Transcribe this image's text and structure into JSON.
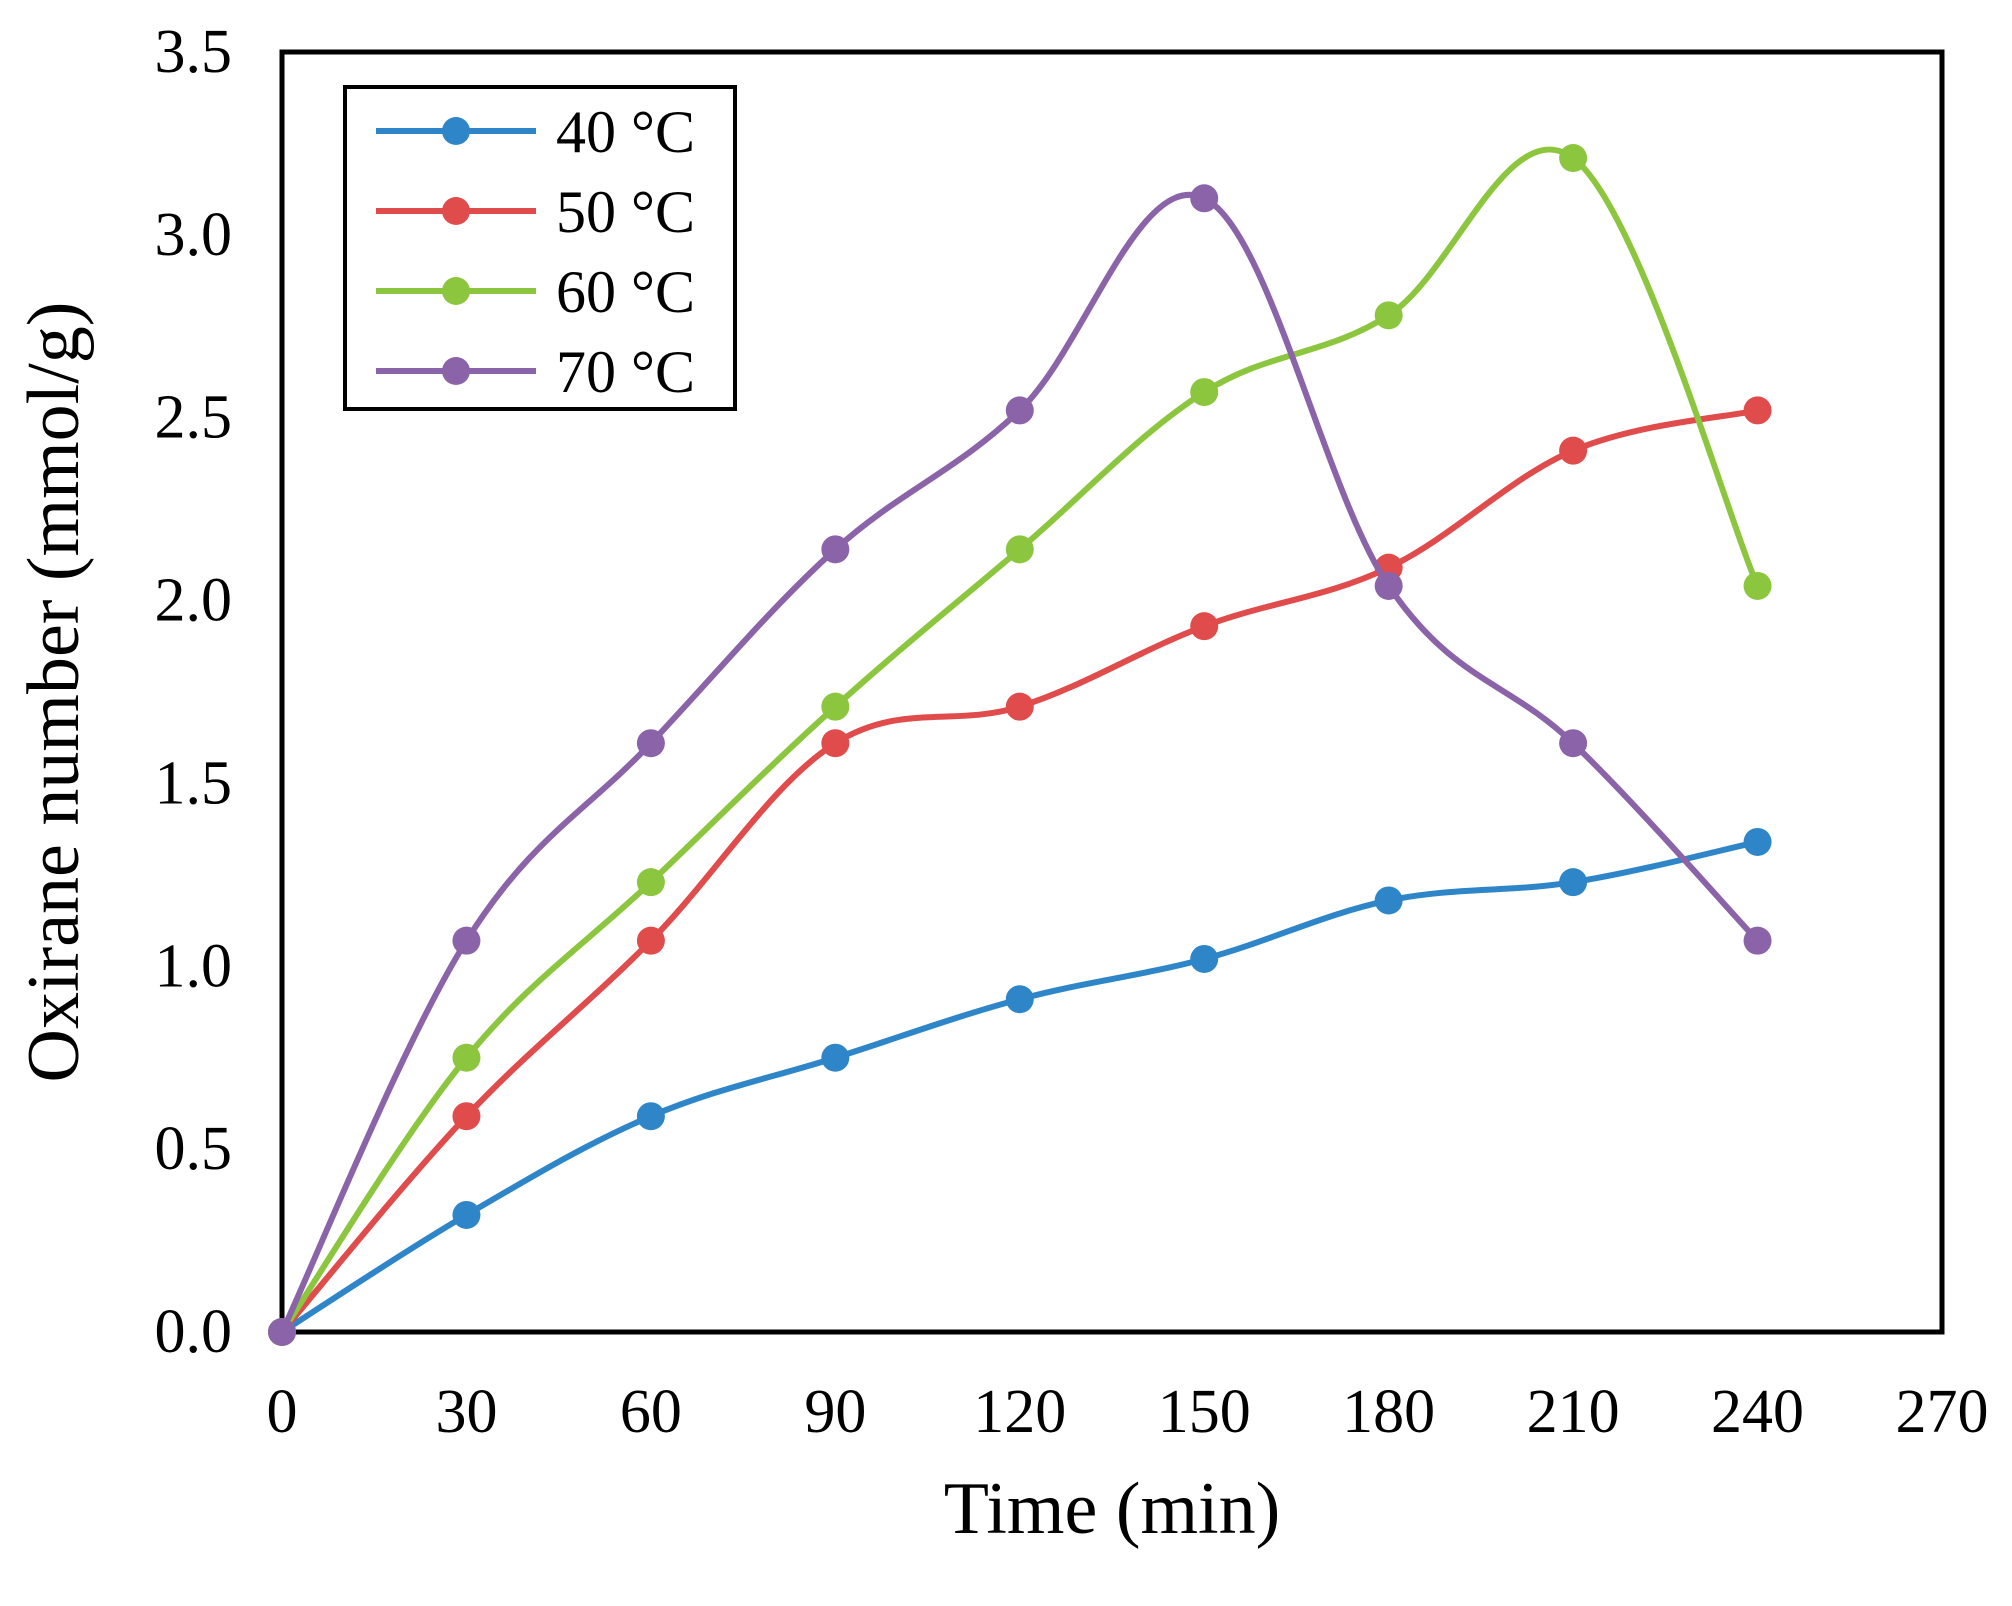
{
  "chart_data": {
    "type": "line",
    "title": "",
    "xlabel": "Time (min)",
    "ylabel": "Oxirane number (mmol/g)",
    "xlim": [
      0,
      270
    ],
    "ylim": [
      0,
      3.5
    ],
    "x_ticks": [
      "0",
      "30",
      "60",
      "90",
      "120",
      "150",
      "180",
      "210",
      "240",
      "270"
    ],
    "y_ticks": [
      "0.0",
      "0.5",
      "1.0",
      "1.5",
      "2.0",
      "2.5",
      "3.0",
      "3.5"
    ],
    "grid": false,
    "legend_position": "top-left",
    "x": [
      0,
      30,
      60,
      90,
      120,
      150,
      180,
      210,
      240
    ],
    "series": [
      {
        "name": "40 °C",
        "color": "#2e86c8",
        "values": [
          0,
          0.32,
          0.59,
          0.75,
          0.91,
          1.02,
          1.18,
          1.23,
          1.34
        ]
      },
      {
        "name": "50 °C",
        "color": "#e04b4b",
        "values": [
          0,
          0.59,
          1.07,
          1.61,
          1.71,
          1.93,
          2.09,
          2.41,
          2.52
        ]
      },
      {
        "name": "60 °C",
        "color": "#8cc63f",
        "values": [
          0,
          0.75,
          1.23,
          1.71,
          2.14,
          2.57,
          2.78,
          3.21,
          2.04
        ]
      },
      {
        "name": "70 °C",
        "color": "#8a63a8",
        "values": [
          0,
          1.07,
          1.61,
          2.14,
          2.52,
          3.1,
          2.04,
          1.61,
          1.07
        ]
      }
    ]
  }
}
